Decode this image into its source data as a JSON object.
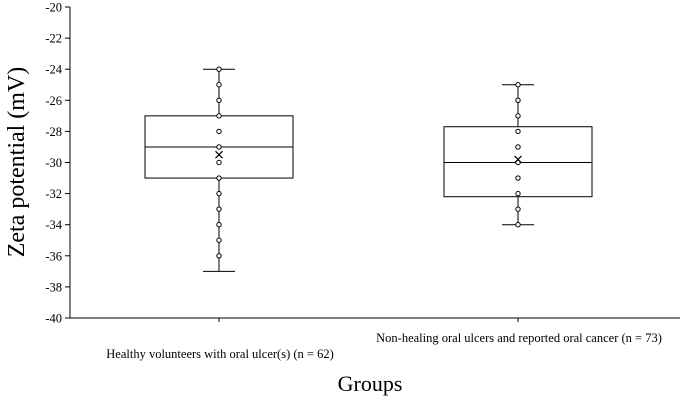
{
  "chart_data": {
    "type": "box",
    "ylabel": "Zeta potential (mV)",
    "xlabel": "Groups",
    "ylim": [
      -40,
      -20
    ],
    "ytick_step": 2,
    "grid": false,
    "categories": [
      "Healthy volunteers with oral ulcer(s) (n = 62)",
      "Non-healing oral ulcers and reported oral cancer (n = 73)"
    ],
    "boxes": [
      {
        "category": "Healthy volunteers with oral ulcer(s) (n = 62)",
        "min": -37,
        "q1": -31,
        "median": -29,
        "q3": -27,
        "max": -24,
        "mean": -29.5,
        "points": [
          -24,
          -25,
          -26,
          -27,
          -28,
          -29,
          -30,
          -31,
          -32,
          -33,
          -34,
          -35,
          -36
        ]
      },
      {
        "category": "Non-healing oral ulcers and reported oral cancer (n = 73)",
        "min": -34,
        "q1": -32.2,
        "median": -30,
        "q3": -27.7,
        "max": -25,
        "mean": -29.8,
        "points": [
          -25,
          -26,
          -27,
          -28,
          -29,
          -30,
          -31,
          -32,
          -33,
          -34
        ]
      }
    ]
  }
}
